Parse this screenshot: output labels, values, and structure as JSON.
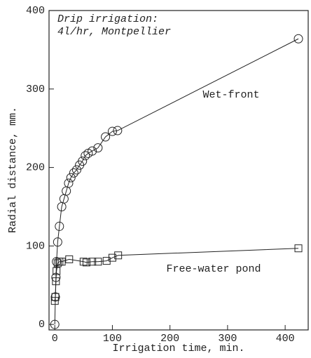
{
  "chart_data": {
    "type": "line",
    "annotation": [
      "Drip irrigation:",
      "4l/hr, Montpellier"
    ],
    "xlabel": "Irrigation time, min.",
    "ylabel": "Radial distance, mm.",
    "xlim": [
      -10,
      440
    ],
    "ylim": [
      -7,
      400
    ],
    "xticks": [
      0,
      100,
      200,
      300,
      400
    ],
    "yticks": [
      0,
      100,
      200,
      300,
      400
    ],
    "series": [
      {
        "name": "Wet-front",
        "color": "#222222",
        "marker": "circle",
        "x": [
          0,
          1,
          2,
          3,
          5,
          8,
          12,
          16,
          20,
          24,
          28,
          33,
          38,
          43,
          48,
          53,
          58,
          65,
          75,
          88,
          100,
          109,
          423
        ],
        "values": [
          0,
          35,
          60,
          80,
          105,
          125,
          150,
          160,
          170,
          180,
          187,
          193,
          197,
          203,
          208,
          215,
          218,
          221,
          225,
          239,
          246,
          247,
          364
        ]
      },
      {
        "name": "Free-water pond",
        "color": "#222222",
        "marker": "square",
        "x": [
          0,
          1,
          2,
          3,
          5,
          8,
          12,
          25,
          50,
          55,
          65,
          75,
          90,
          100,
          110,
          423
        ],
        "values": [
          30,
          35,
          55,
          68,
          78,
          80,
          80,
          83,
          80,
          79,
          80,
          80,
          81,
          85,
          88,
          97
        ]
      }
    ]
  }
}
